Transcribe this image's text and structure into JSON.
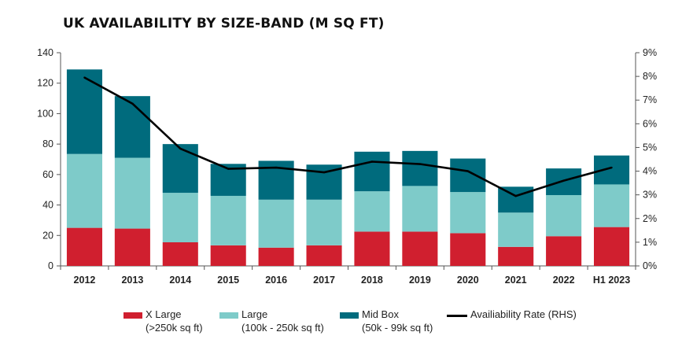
{
  "chart_data": {
    "type": "bar",
    "stacked": true,
    "title": "UK AVAILABILITY BY SIZE-BAND (M SQ FT)",
    "categories": [
      "2012",
      "2013",
      "2014",
      "2015",
      "2016",
      "2017",
      "2018",
      "2019",
      "2020",
      "2021",
      "2022",
      "H1 2023"
    ],
    "series": [
      {
        "name": "X Large",
        "name_sub": "(>250k sq ft)",
        "color": "#d01f2f",
        "values": [
          25,
          24.5,
          15.5,
          13.5,
          12,
          13.5,
          22.5,
          22.5,
          21.5,
          12.5,
          19.5,
          25.5
        ]
      },
      {
        "name": "Large",
        "name_sub": "(100k - 250k sq ft)",
        "color": "#7ecbc9",
        "values": [
          48.5,
          46.5,
          32.5,
          32.5,
          31.5,
          30,
          26.5,
          30,
          27,
          22.5,
          27,
          28
        ]
      },
      {
        "name": "Mid Box",
        "name_sub": "(50k - 99k sq ft)",
        "color": "#006b7d",
        "values": [
          55.5,
          40.5,
          32,
          21,
          25.5,
          23,
          26,
          23,
          22,
          17,
          17.5,
          19
        ]
      }
    ],
    "line_series": {
      "name": "Availiability Rate (RHS)",
      "color": "#000000",
      "axis": "right",
      "values": [
        7.95,
        6.85,
        4.95,
        4.1,
        4.15,
        3.95,
        4.4,
        4.3,
        4.0,
        2.95,
        3.6,
        4.15
      ]
    },
    "yticks_left": [
      "0",
      "20",
      "40",
      "60",
      "80",
      "100",
      "120",
      "140"
    ],
    "yticks_right": [
      "0%",
      "1%",
      "2%",
      "3%",
      "4%",
      "5%",
      "6%",
      "7%",
      "8%",
      "9%"
    ],
    "ylim_left": [
      0,
      140
    ],
    "ylim_right": [
      0,
      9
    ],
    "xlabel": "",
    "ylabel": "",
    "grid": false,
    "legend_position": "bottom"
  }
}
